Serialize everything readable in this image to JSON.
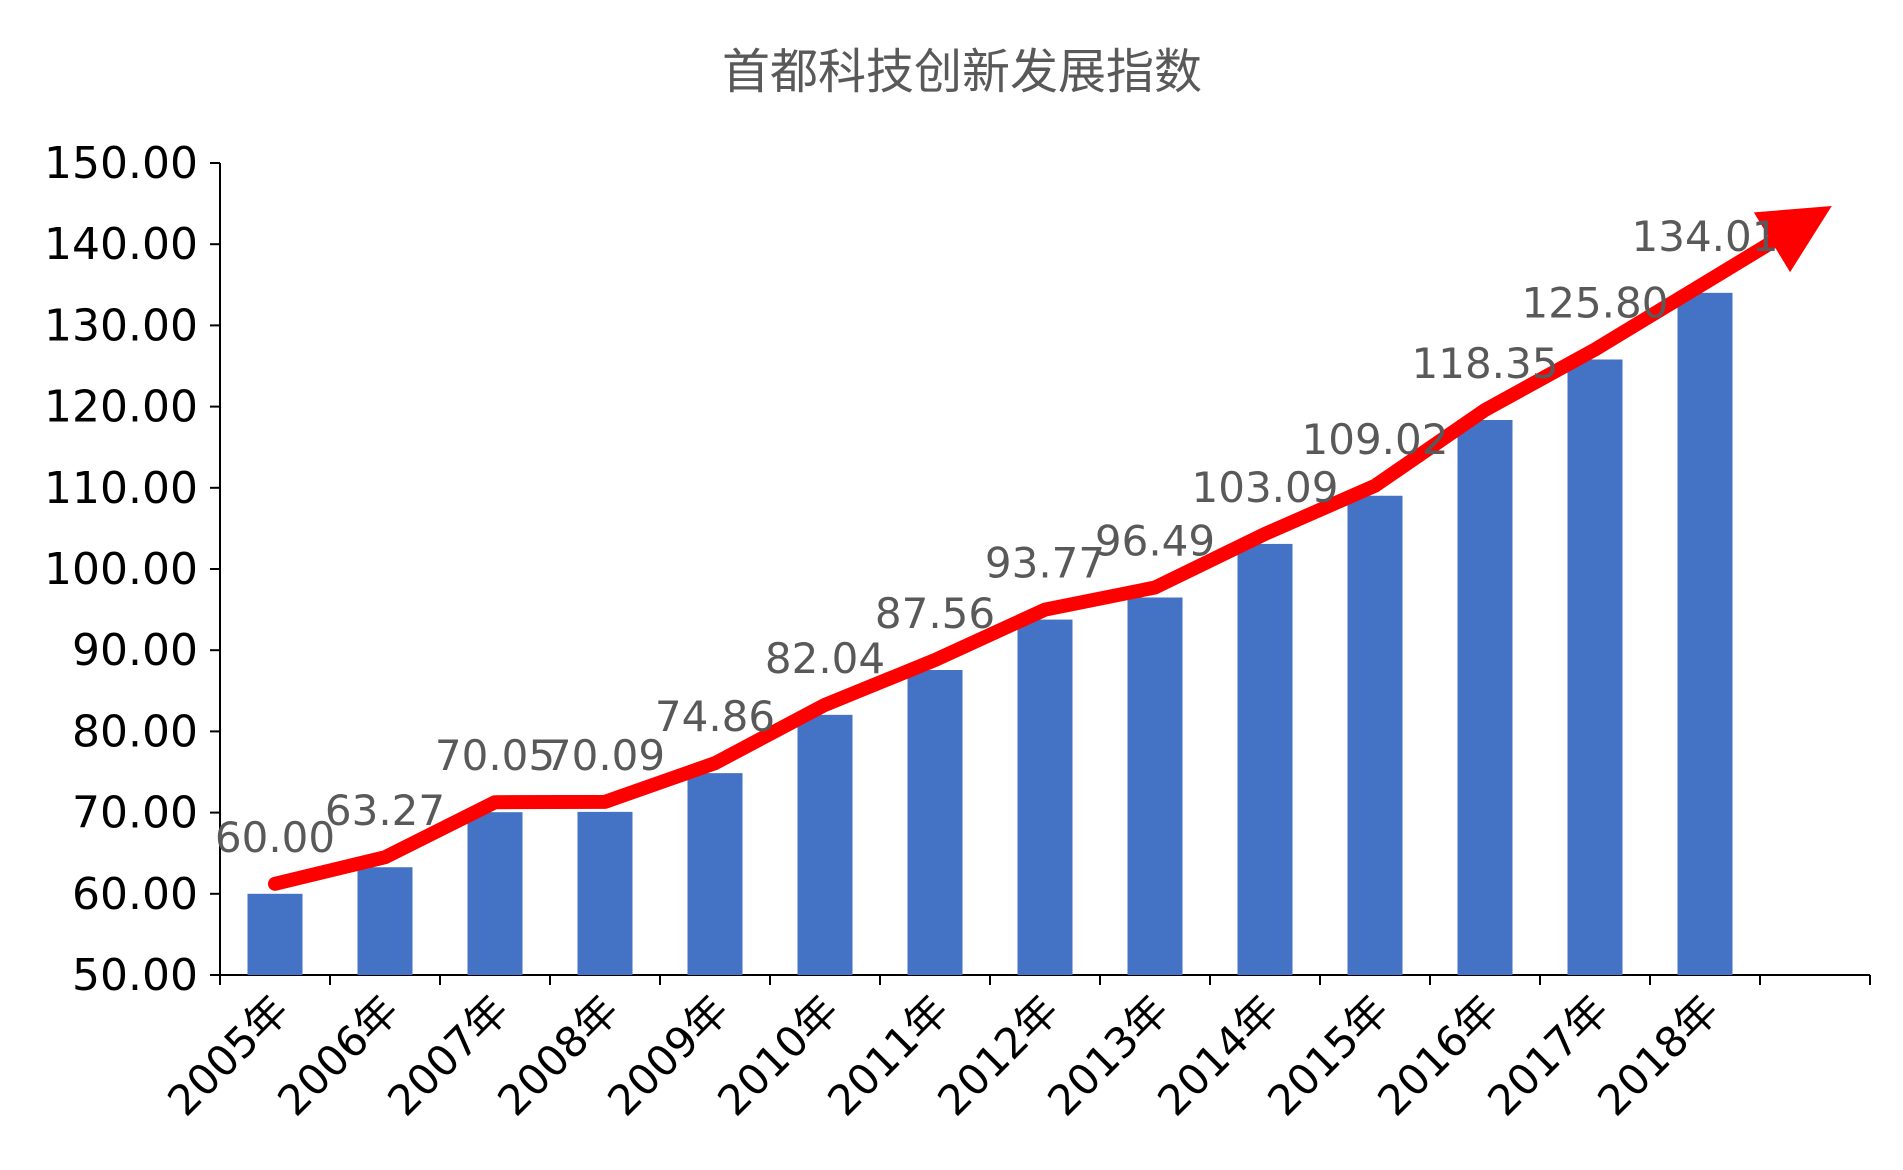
{
  "chart_data": {
    "type": "bar",
    "title": "首都科技创新发展指数",
    "xlabel": "",
    "ylabel": "",
    "ylim": [
      50,
      150
    ],
    "y_ticks": [
      "50.00",
      "60.00",
      "70.00",
      "80.00",
      "90.00",
      "100.00",
      "110.00",
      "120.00",
      "130.00",
      "140.00",
      "150.00"
    ],
    "categories": [
      "2005年",
      "2006年",
      "2007年",
      "2008年",
      "2009年",
      "2010年",
      "2011年",
      "2012年",
      "2013年",
      "2014年",
      "2015年",
      "2016年",
      "2017年",
      "2018年"
    ],
    "values": [
      60.0,
      63.27,
      70.05,
      70.09,
      74.86,
      82.04,
      87.56,
      93.77,
      96.49,
      103.09,
      109.02,
      118.35,
      125.8,
      134.01
    ],
    "data_labels": [
      "60.00",
      "63.27",
      "70.05",
      "70.09",
      "74.86",
      "82.04",
      "87.56",
      "93.77",
      "96.49",
      "103.09",
      "109.02",
      "118.35",
      "125.80",
      "134.01"
    ],
    "bar_color": "#4472C4",
    "trend_arrow_color": "#FF0000",
    "grid": false,
    "legend": "none"
  }
}
